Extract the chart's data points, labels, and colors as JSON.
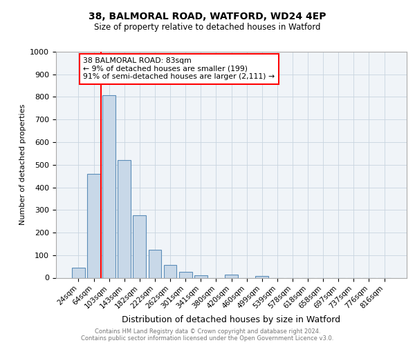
{
  "title_line1": "38, BALMORAL ROAD, WATFORD, WD24 4EP",
  "title_line2": "Size of property relative to detached houses in Watford",
  "xlabel": "Distribution of detached houses by size in Watford",
  "ylabel": "Number of detached properties",
  "categories": [
    "24sqm",
    "64sqm",
    "103sqm",
    "143sqm",
    "182sqm",
    "222sqm",
    "262sqm",
    "301sqm",
    "341sqm",
    "380sqm",
    "420sqm",
    "460sqm",
    "499sqm",
    "539sqm",
    "578sqm",
    "618sqm",
    "658sqm",
    "697sqm",
    "737sqm",
    "776sqm",
    "816sqm"
  ],
  "values": [
    45,
    460,
    807,
    520,
    275,
    125,
    58,
    25,
    12,
    0,
    13,
    0,
    8,
    0,
    0,
    0,
    0,
    0,
    0,
    0,
    0
  ],
  "bar_color": "#c8d8e8",
  "bar_edge_color": "#5b8db8",
  "vline_color": "red",
  "vline_x": 1.48,
  "annotation_text": "38 BALMORAL ROAD: 83sqm\n← 9% of detached houses are smaller (199)\n91% of semi-detached houses are larger (2,111) →",
  "annotation_box_color": "white",
  "annotation_box_edge_color": "red",
  "ylim": [
    0,
    1000
  ],
  "yticks": [
    0,
    100,
    200,
    300,
    400,
    500,
    600,
    700,
    800,
    900,
    1000
  ],
  "footer_line1": "Contains HM Land Registry data © Crown copyright and database right 2024.",
  "footer_line2": "Contains public sector information licensed under the Open Government Licence v3.0.",
  "bg_color": "#f0f4f8",
  "grid_color": "#c8d4e0",
  "fig_width": 6.0,
  "fig_height": 5.0,
  "fig_dpi": 100
}
